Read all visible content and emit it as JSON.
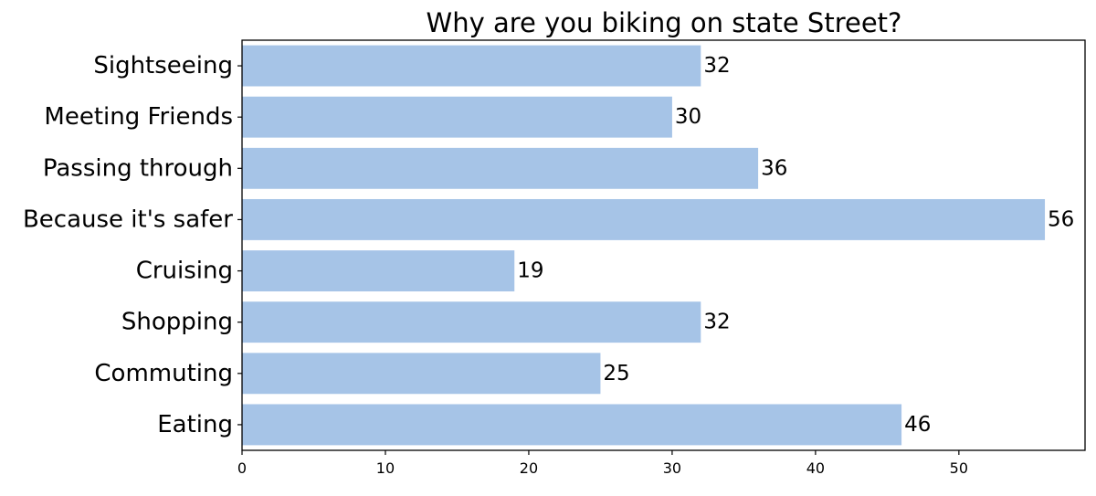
{
  "chart_data": {
    "type": "bar",
    "orientation": "horizontal",
    "title": "Why are you biking on state Street?",
    "xlabel": "",
    "ylabel": "",
    "categories": [
      "Sightseeing",
      "Meeting Friends",
      "Passing through",
      "Because it's safer",
      "Cruising",
      "Shopping",
      "Commuting",
      "Eating"
    ],
    "values": [
      32,
      30,
      36,
      56,
      19,
      32,
      25,
      46
    ],
    "value_labels": [
      "32",
      "30",
      "36",
      "56",
      "19",
      "32",
      "25",
      "46"
    ],
    "xlim": [
      0,
      58.8
    ],
    "xticks": [
      0,
      10,
      20,
      30,
      40,
      50
    ],
    "xtick_labels": [
      "0",
      "10",
      "20",
      "30",
      "40",
      "50"
    ],
    "grid": false,
    "legend": "none",
    "bar_color": "#a6c4e7"
  }
}
